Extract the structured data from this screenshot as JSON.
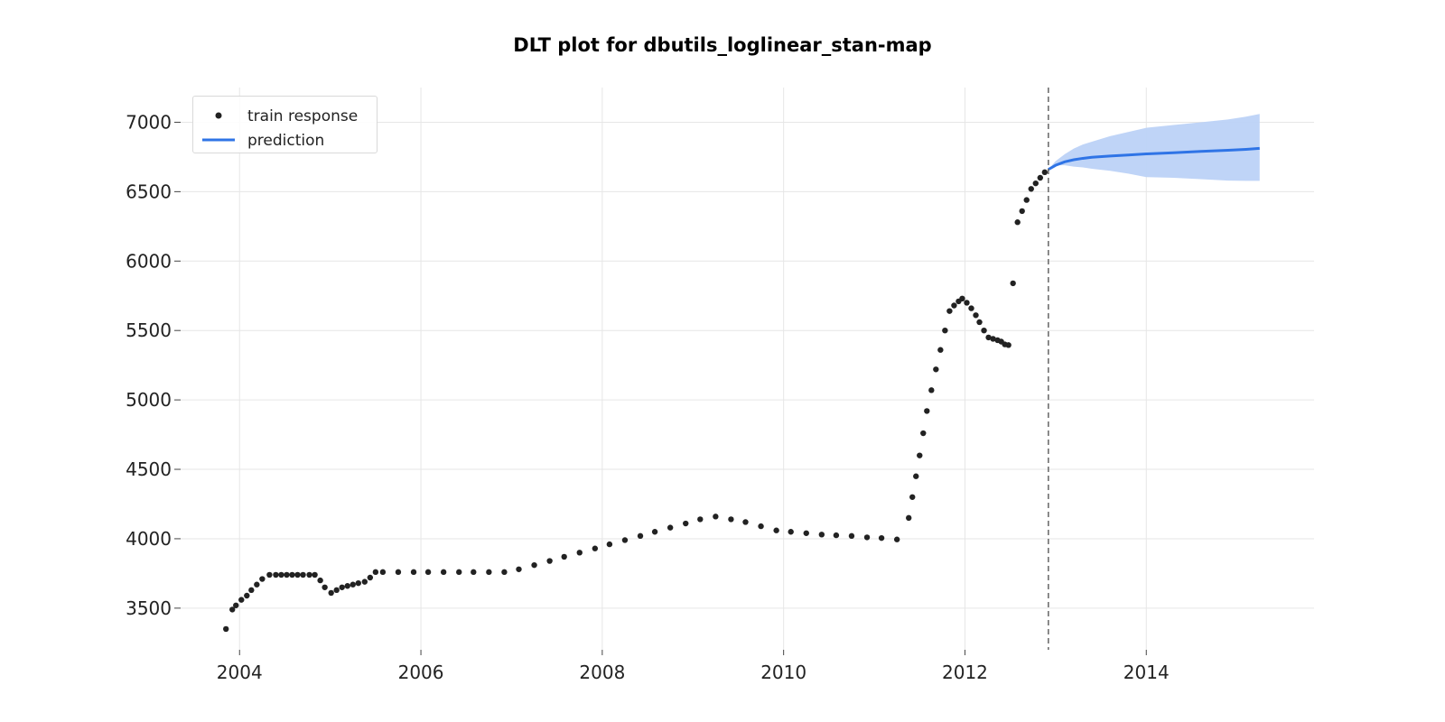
{
  "chart_data": {
    "type": "line",
    "title": "DLT plot for dbutils_loglinear_stan-map",
    "xlabel": "",
    "ylabel": "",
    "xlim": [
      2003.35,
      2015.85
    ],
    "ylim": [
      3200,
      7250
    ],
    "x_ticks": [
      2004,
      2006,
      2008,
      2010,
      2012,
      2014
    ],
    "x_tick_labels": [
      "2004",
      "2006",
      "2008",
      "2010",
      "2012",
      "2014"
    ],
    "y_ticks": [
      3500,
      4000,
      4500,
      5000,
      5500,
      6000,
      6500,
      7000
    ],
    "y_tick_labels": [
      "3500",
      "4000",
      "4500",
      "5000",
      "5500",
      "6000",
      "6500",
      "7000"
    ],
    "grid": true,
    "legend_position": "top-left",
    "train_end": 2012.92,
    "series": [
      {
        "name": "train response",
        "type": "scatter",
        "color": "#222222",
        "points": [
          [
            2003.85,
            3350
          ],
          [
            2003.92,
            3490
          ],
          [
            2003.96,
            3520
          ],
          [
            2004.02,
            3560
          ],
          [
            2004.08,
            3590
          ],
          [
            2004.13,
            3630
          ],
          [
            2004.19,
            3670
          ],
          [
            2004.25,
            3710
          ],
          [
            2004.33,
            3740
          ],
          [
            2004.4,
            3740
          ],
          [
            2004.46,
            3740
          ],
          [
            2004.52,
            3740
          ],
          [
            2004.58,
            3740
          ],
          [
            2004.64,
            3740
          ],
          [
            2004.7,
            3740
          ],
          [
            2004.77,
            3740
          ],
          [
            2004.83,
            3740
          ],
          [
            2004.89,
            3700
          ],
          [
            2004.94,
            3650
          ],
          [
            2005.01,
            3610
          ],
          [
            2005.07,
            3630
          ],
          [
            2005.13,
            3650
          ],
          [
            2005.19,
            3660
          ],
          [
            2005.25,
            3670
          ],
          [
            2005.31,
            3680
          ],
          [
            2005.38,
            3690
          ],
          [
            2005.44,
            3720
          ],
          [
            2005.5,
            3760
          ],
          [
            2005.58,
            3760
          ],
          [
            2005.75,
            3760
          ],
          [
            2005.92,
            3760
          ],
          [
            2006.08,
            3760
          ],
          [
            2006.25,
            3760
          ],
          [
            2006.42,
            3760
          ],
          [
            2006.58,
            3760
          ],
          [
            2006.75,
            3760
          ],
          [
            2006.92,
            3760
          ],
          [
            2007.08,
            3780
          ],
          [
            2007.25,
            3810
          ],
          [
            2007.42,
            3840
          ],
          [
            2007.58,
            3870
          ],
          [
            2007.75,
            3900
          ],
          [
            2007.92,
            3930
          ],
          [
            2008.08,
            3960
          ],
          [
            2008.25,
            3990
          ],
          [
            2008.42,
            4020
          ],
          [
            2008.58,
            4050
          ],
          [
            2008.75,
            4080
          ],
          [
            2008.92,
            4110
          ],
          [
            2009.08,
            4140
          ],
          [
            2009.25,
            4160
          ],
          [
            2009.42,
            4140
          ],
          [
            2009.58,
            4120
          ],
          [
            2009.75,
            4090
          ],
          [
            2009.92,
            4060
          ],
          [
            2010.08,
            4050
          ],
          [
            2010.25,
            4040
          ],
          [
            2010.42,
            4030
          ],
          [
            2010.58,
            4025
          ],
          [
            2010.75,
            4020
          ],
          [
            2010.92,
            4010
          ],
          [
            2011.08,
            4005
          ],
          [
            2011.25,
            3995
          ],
          [
            2011.38,
            4150
          ],
          [
            2011.42,
            4300
          ],
          [
            2011.46,
            4450
          ],
          [
            2011.5,
            4600
          ],
          [
            2011.54,
            4760
          ],
          [
            2011.58,
            4920
          ],
          [
            2011.63,
            5070
          ],
          [
            2011.68,
            5220
          ],
          [
            2011.73,
            5360
          ],
          [
            2011.78,
            5500
          ],
          [
            2011.83,
            5640
          ],
          [
            2011.88,
            5680
          ],
          [
            2011.93,
            5710
          ],
          [
            2011.97,
            5730
          ],
          [
            2012.02,
            5700
          ],
          [
            2012.07,
            5660
          ],
          [
            2012.12,
            5610
          ],
          [
            2012.16,
            5560
          ],
          [
            2012.21,
            5500
          ],
          [
            2012.26,
            5450
          ],
          [
            2012.31,
            5440
          ],
          [
            2012.36,
            5430
          ],
          [
            2012.4,
            5420
          ],
          [
            2012.44,
            5400
          ],
          [
            2012.48,
            5395
          ],
          [
            2012.53,
            5840
          ],
          [
            2012.58,
            6280
          ],
          [
            2012.63,
            6360
          ],
          [
            2012.68,
            6440
          ],
          [
            2012.73,
            6520
          ],
          [
            2012.78,
            6560
          ],
          [
            2012.83,
            6600
          ],
          [
            2012.88,
            6640
          ]
        ]
      },
      {
        "name": "prediction",
        "type": "line",
        "color": "#2f74e6",
        "x": [
          2012.92,
          2013.0,
          2013.1,
          2013.2,
          2013.3,
          2013.4,
          2013.6,
          2013.8,
          2014.0,
          2014.3,
          2014.6,
          2014.9,
          2015.1,
          2015.25
        ],
        "y": [
          6660,
          6690,
          6715,
          6730,
          6740,
          6748,
          6757,
          6764,
          6772,
          6780,
          6790,
          6798,
          6805,
          6812
        ]
      },
      {
        "name": "prediction interval",
        "type": "band",
        "color": "#bcd2f7",
        "x": [
          2012.92,
          2013.0,
          2013.1,
          2013.2,
          2013.3,
          2013.4,
          2013.6,
          2013.8,
          2014.0,
          2014.3,
          2014.6,
          2014.9,
          2015.1,
          2015.25
        ],
        "upper": [
          6660,
          6720,
          6770,
          6810,
          6840,
          6860,
          6900,
          6930,
          6960,
          6980,
          7000,
          7020,
          7040,
          7060
        ],
        "lower": [
          6660,
          6690,
          6690,
          6680,
          6675,
          6665,
          6650,
          6630,
          6605,
          6600,
          6590,
          6580,
          6578,
          6578
        ]
      }
    ]
  },
  "legend": {
    "entries": [
      {
        "label": "train response"
      },
      {
        "label": "prediction"
      }
    ]
  }
}
